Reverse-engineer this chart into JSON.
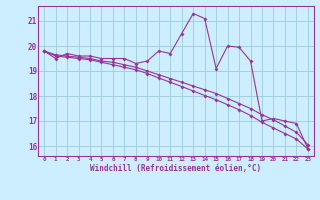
{
  "xlabel": "Windchill (Refroidissement éolien,°C)",
  "bg_color": "#cceeff",
  "grid_color": "#99ccdd",
  "line_color": "#993399",
  "spine_color": "#993399",
  "x_ticks": [
    0,
    1,
    2,
    3,
    4,
    5,
    6,
    7,
    8,
    9,
    10,
    11,
    12,
    13,
    14,
    15,
    16,
    17,
    18,
    19,
    20,
    21,
    22,
    23
  ],
  "y_ticks": [
    16,
    17,
    18,
    19,
    20,
    21
  ],
  "ylim": [
    15.6,
    21.6
  ],
  "xlim": [
    -0.5,
    23.5
  ],
  "series1": [
    19.8,
    19.5,
    19.7,
    19.6,
    19.6,
    19.5,
    19.5,
    19.5,
    19.3,
    19.4,
    19.8,
    19.7,
    20.5,
    21.3,
    21.1,
    19.1,
    20.0,
    19.95,
    19.4,
    17.0,
    17.1,
    17.0,
    16.9,
    15.9
  ],
  "series2": [
    19.8,
    19.65,
    19.6,
    19.55,
    19.5,
    19.4,
    19.35,
    19.25,
    19.15,
    19.0,
    18.85,
    18.7,
    18.55,
    18.4,
    18.25,
    18.1,
    17.9,
    17.7,
    17.5,
    17.25,
    17.05,
    16.8,
    16.55,
    16.05
  ],
  "series3": [
    19.8,
    19.6,
    19.55,
    19.5,
    19.45,
    19.35,
    19.25,
    19.15,
    19.05,
    18.9,
    18.72,
    18.55,
    18.38,
    18.2,
    18.02,
    17.85,
    17.65,
    17.45,
    17.22,
    16.95,
    16.72,
    16.5,
    16.28,
    15.88
  ]
}
